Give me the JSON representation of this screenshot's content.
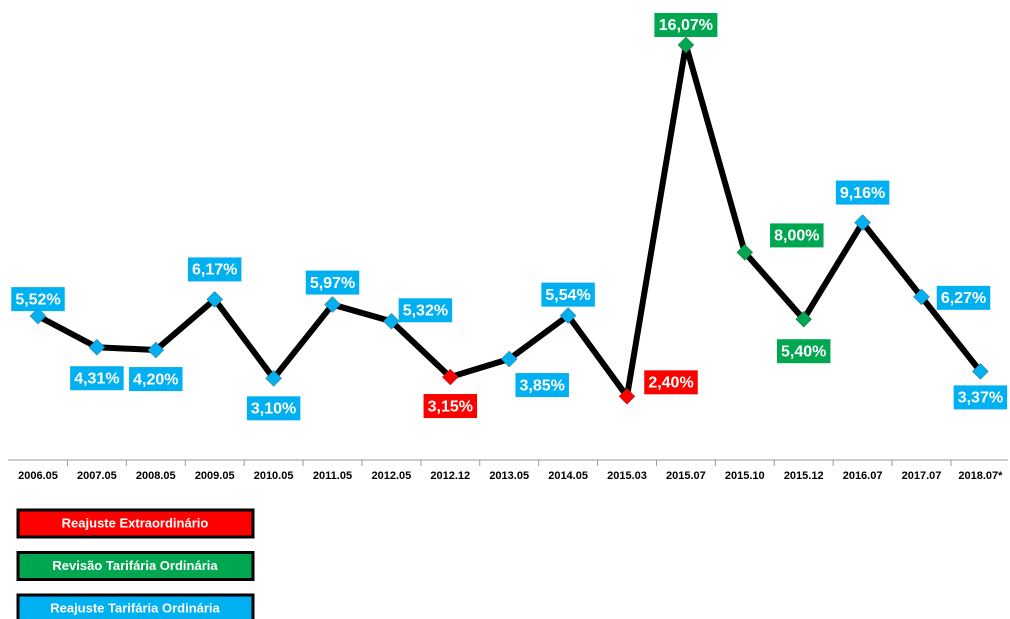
{
  "chart_data": {
    "type": "line",
    "categories": [
      "2006.05",
      "2007.05",
      "2008.05",
      "2009.05",
      "2010.05",
      "2011.05",
      "2012.05",
      "2012.12",
      "2013.05",
      "2014.05",
      "2015.03",
      "2015.07",
      "2015.10",
      "2015.12",
      "2016.07",
      "2017.07",
      "2018.07*"
    ],
    "series": [
      {
        "color": "#000000",
        "values": [
          5.52,
          4.31,
          4.2,
          6.17,
          3.1,
          5.97,
          5.32,
          3.15,
          3.85,
          5.54,
          2.4,
          16.07,
          8.0,
          5.4,
          9.16,
          6.27,
          3.37
        ],
        "value_labels": [
          "5,52%",
          "4,31%",
          "4,20%",
          "6,17%",
          "3,10%",
          "5,97%",
          "5,32%",
          "3,15%",
          "3,85%",
          "5,54%",
          "2,40%",
          "16,07%",
          "8,00%",
          "5,40%",
          "9,16%",
          "6,27%",
          "3,37%"
        ],
        "point_colors": [
          "#00b0f0",
          "#00b0f0",
          "#00b0f0",
          "#00b0f0",
          "#00b0f0",
          "#00b0f0",
          "#00b0f0",
          "#ff0000",
          "#00b0f0",
          "#00b0f0",
          "#ff0000",
          "#00a650",
          "#00a650",
          "#00a650",
          "#00b0f0",
          "#00b0f0",
          "#00b0f0"
        ]
      }
    ],
    "ylim": [
      0,
      17.12
    ],
    "legend": [
      {
        "name": "Reajuste Extraordinário",
        "color": "#ff0000"
      },
      {
        "name": "Revisão Tarifária Ordinária",
        "color": "#00a650"
      },
      {
        "name": "Reajuste Tarifária Ordinária",
        "color": "#00b0f0"
      }
    ]
  }
}
